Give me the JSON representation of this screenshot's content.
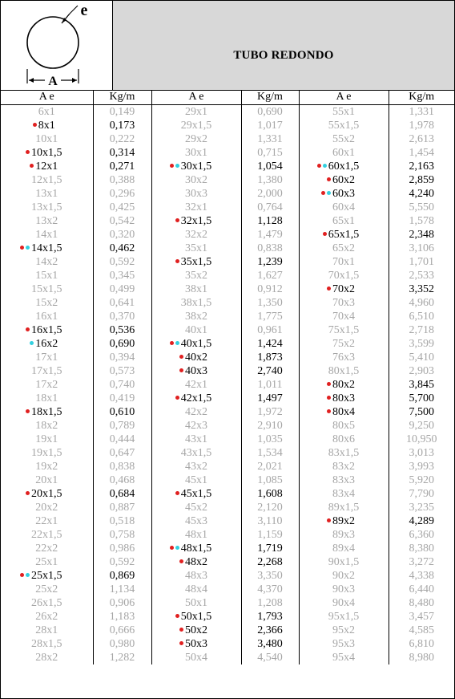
{
  "title": "TUBO REDONDO",
  "diagram": {
    "label_A": "A",
    "label_e": "e"
  },
  "headers": [
    "A  e",
    "Kg/m",
    "A  e",
    "Kg/m",
    "A  e",
    "Kg/m"
  ],
  "colors": {
    "red_dot": "#e02020",
    "cyan_dot": "#33d0e0",
    "dim_text": "#a6a6a6",
    "title_bg": "#d8d8d8"
  },
  "rows": [
    {
      "a": "6x1",
      "aw": "0,149",
      "ad": [],
      "b": "29x1",
      "bw": "0,690",
      "bd": [],
      "c": "55x1",
      "cw": "1,331",
      "cd": []
    },
    {
      "a": "8x1",
      "aw": "0,173",
      "ad": [
        "red"
      ],
      "b": "29x1,5",
      "bw": "1,017",
      "bd": [],
      "c": "55x1,5",
      "cw": "1,978",
      "cd": []
    },
    {
      "a": "10x1",
      "aw": "0,222",
      "ad": [],
      "b": "29x2",
      "bw": "1,331",
      "bd": [],
      "c": "55x2",
      "cw": "2,613",
      "cd": []
    },
    {
      "a": "10x1,5",
      "aw": "0,314",
      "ad": [
        "red"
      ],
      "b": "30x1",
      "bw": "0,715",
      "bd": [],
      "c": "60x1",
      "cw": "1,454",
      "cd": []
    },
    {
      "a": "12x1",
      "aw": "0,271",
      "ad": [
        "red"
      ],
      "b": "30x1,5",
      "bw": "1,054",
      "bd": [
        "red",
        "cyan"
      ],
      "c": "60x1,5",
      "cw": "2,163",
      "cd": [
        "red",
        "cyan"
      ]
    },
    {
      "a": "12x1,5",
      "aw": "0,388",
      "ad": [],
      "b": "30x2",
      "bw": "1,380",
      "bd": [],
      "c": "60x2",
      "cw": "2,859",
      "cd": [
        "red"
      ]
    },
    {
      "a": "13x1",
      "aw": "0,296",
      "ad": [],
      "b": "30x3",
      "bw": "2,000",
      "bd": [],
      "c": "60x3",
      "cw": "4,240",
      "cd": [
        "red",
        "cyan"
      ]
    },
    {
      "a": "13x1,5",
      "aw": "0,425",
      "ad": [],
      "b": "32x1",
      "bw": "0,764",
      "bd": [],
      "c": "60x4",
      "cw": "5,550",
      "cd": []
    },
    {
      "a": "13x2",
      "aw": "0,542",
      "ad": [],
      "b": "32x1,5",
      "bw": "1,128",
      "bd": [
        "red"
      ],
      "c": "65x1",
      "cw": "1,578",
      "cd": []
    },
    {
      "a": "14x1",
      "aw": "0,320",
      "ad": [],
      "b": "32x2",
      "bw": "1,479",
      "bd": [],
      "c": "65x1,5",
      "cw": "2,348",
      "cd": [
        "red"
      ]
    },
    {
      "a": "14x1,5",
      "aw": "0,462",
      "ad": [
        "red",
        "cyan"
      ],
      "b": "35x1",
      "bw": "0,838",
      "bd": [],
      "c": "65x2",
      "cw": "3,106",
      "cd": []
    },
    {
      "a": "14x2",
      "aw": "0,592",
      "ad": [],
      "b": "35x1,5",
      "bw": "1,239",
      "bd": [
        "red"
      ],
      "c": "70x1",
      "cw": "1,701",
      "cd": []
    },
    {
      "a": "15x1",
      "aw": "0,345",
      "ad": [],
      "b": "35x2",
      "bw": "1,627",
      "bd": [],
      "c": "70x1,5",
      "cw": "2,533",
      "cd": []
    },
    {
      "a": "15x1,5",
      "aw": "0,499",
      "ad": [],
      "b": "38x1",
      "bw": "0,912",
      "bd": [],
      "c": "70x2",
      "cw": "3,352",
      "cd": [
        "red"
      ]
    },
    {
      "a": "15x2",
      "aw": "0,641",
      "ad": [],
      "b": "38x1,5",
      "bw": "1,350",
      "bd": [],
      "c": "70x3",
      "cw": "4,960",
      "cd": []
    },
    {
      "a": "16x1",
      "aw": "0,370",
      "ad": [],
      "b": "38x2",
      "bw": "1,775",
      "bd": [],
      "c": "70x4",
      "cw": "6,510",
      "cd": []
    },
    {
      "a": "16x1,5",
      "aw": "0,536",
      "ad": [
        "red"
      ],
      "b": "40x1",
      "bw": "0,961",
      "bd": [],
      "c": "75x1,5",
      "cw": "2,718",
      "cd": []
    },
    {
      "a": "16x2",
      "aw": "0,690",
      "ad": [
        "cyan"
      ],
      "b": "40x1,5",
      "bw": "1,424",
      "bd": [
        "red",
        "cyan"
      ],
      "c": "75x2",
      "cw": "3,599",
      "cd": []
    },
    {
      "a": "17x1",
      "aw": "0,394",
      "ad": [],
      "b": "40x2",
      "bw": "1,873",
      "bd": [
        "red"
      ],
      "c": "76x3",
      "cw": "5,410",
      "cd": []
    },
    {
      "a": "17x1,5",
      "aw": "0,573",
      "ad": [],
      "b": "40x3",
      "bw": "2,740",
      "bd": [
        "red"
      ],
      "c": "80x1,5",
      "cw": "2,903",
      "cd": []
    },
    {
      "a": "17x2",
      "aw": "0,740",
      "ad": [],
      "b": "42x1",
      "bw": "1,011",
      "bd": [],
      "c": "80x2",
      "cw": "3,845",
      "cd": [
        "red"
      ]
    },
    {
      "a": "18x1",
      "aw": "0,419",
      "ad": [],
      "b": "42x1,5",
      "bw": "1,497",
      "bd": [
        "red"
      ],
      "c": "80x3",
      "cw": "5,700",
      "cd": [
        "red"
      ]
    },
    {
      "a": "18x1,5",
      "aw": "0,610",
      "ad": [
        "red"
      ],
      "b": "42x2",
      "bw": "1,972",
      "bd": [],
      "c": "80x4",
      "cw": "7,500",
      "cd": [
        "red"
      ]
    },
    {
      "a": "18x2",
      "aw": "0,789",
      "ad": [],
      "b": "42x3",
      "bw": "2,910",
      "bd": [],
      "c": "80x5",
      "cw": "9,250",
      "cd": []
    },
    {
      "a": "19x1",
      "aw": "0,444",
      "ad": [],
      "b": "43x1",
      "bw": "1,035",
      "bd": [],
      "c": "80x6",
      "cw": "10,950",
      "cd": []
    },
    {
      "a": "19x1,5",
      "aw": "0,647",
      "ad": [],
      "b": "43x1,5",
      "bw": "1,534",
      "bd": [],
      "c": "83x1,5",
      "cw": "3,013",
      "cd": []
    },
    {
      "a": "19x2",
      "aw": "0,838",
      "ad": [],
      "b": "43x2",
      "bw": "2,021",
      "bd": [],
      "c": "83x2",
      "cw": "3,993",
      "cd": []
    },
    {
      "a": "20x1",
      "aw": "0,468",
      "ad": [],
      "b": "45x1",
      "bw": "1,085",
      "bd": [],
      "c": "83x3",
      "cw": "5,920",
      "cd": []
    },
    {
      "a": "20x1,5",
      "aw": "0,684",
      "ad": [
        "red"
      ],
      "b": "45x1,5",
      "bw": "1,608",
      "bd": [
        "red"
      ],
      "c": "83x4",
      "cw": "7,790",
      "cd": []
    },
    {
      "a": "20x2",
      "aw": "0,887",
      "ad": [],
      "b": "45x2",
      "bw": "2,120",
      "bd": [],
      "c": "89x1,5",
      "cw": "3,235",
      "cd": []
    },
    {
      "a": "22x1",
      "aw": "0,518",
      "ad": [],
      "b": "45x3",
      "bw": "3,110",
      "bd": [],
      "c": "89x2",
      "cw": "4,289",
      "cd": [
        "red"
      ]
    },
    {
      "a": "22x1,5",
      "aw": "0,758",
      "ad": [],
      "b": "48x1",
      "bw": "1,159",
      "bd": [],
      "c": "89x3",
      "cw": "6,360",
      "cd": []
    },
    {
      "a": "22x2",
      "aw": "0,986",
      "ad": [],
      "b": "48x1,5",
      "bw": "1,719",
      "bd": [
        "red",
        "cyan"
      ],
      "c": "89x4",
      "cw": "8,380",
      "cd": []
    },
    {
      "a": "25x1",
      "aw": "0,592",
      "ad": [],
      "b": "48x2",
      "bw": "2,268",
      "bd": [
        "red"
      ],
      "c": "90x1,5",
      "cw": "3,272",
      "cd": []
    },
    {
      "a": "25x1,5",
      "aw": "0,869",
      "ad": [
        "red",
        "cyan"
      ],
      "b": "48x3",
      "bw": "3,350",
      "bd": [],
      "c": "90x2",
      "cw": "4,338",
      "cd": []
    },
    {
      "a": "25x2",
      "aw": "1,134",
      "ad": [],
      "b": "48x4",
      "bw": "4,370",
      "bd": [],
      "c": "90x3",
      "cw": "6,440",
      "cd": []
    },
    {
      "a": "26x1,5",
      "aw": "0,906",
      "ad": [],
      "b": "50x1",
      "bw": "1,208",
      "bd": [],
      "c": "90x4",
      "cw": "8,480",
      "cd": []
    },
    {
      "a": "26x2",
      "aw": "1,183",
      "ad": [],
      "b": "50x1,5",
      "bw": "1,793",
      "bd": [
        "red"
      ],
      "c": "95x1,5",
      "cw": "3,457",
      "cd": []
    },
    {
      "a": "28x1",
      "aw": "0,666",
      "ad": [],
      "b": "50x2",
      "bw": "2,366",
      "bd": [
        "red"
      ],
      "c": "95x2",
      "cw": "4,585",
      "cd": []
    },
    {
      "a": "28x1,5",
      "aw": "0,980",
      "ad": [],
      "b": "50x3",
      "bw": "3,480",
      "bd": [
        "red"
      ],
      "c": "95x3",
      "cw": "6,810",
      "cd": []
    },
    {
      "a": "28x2",
      "aw": "1,282",
      "ad": [],
      "b": "50x4",
      "bw": "4,540",
      "bd": [],
      "c": "95x4",
      "cw": "8,980",
      "cd": []
    }
  ]
}
